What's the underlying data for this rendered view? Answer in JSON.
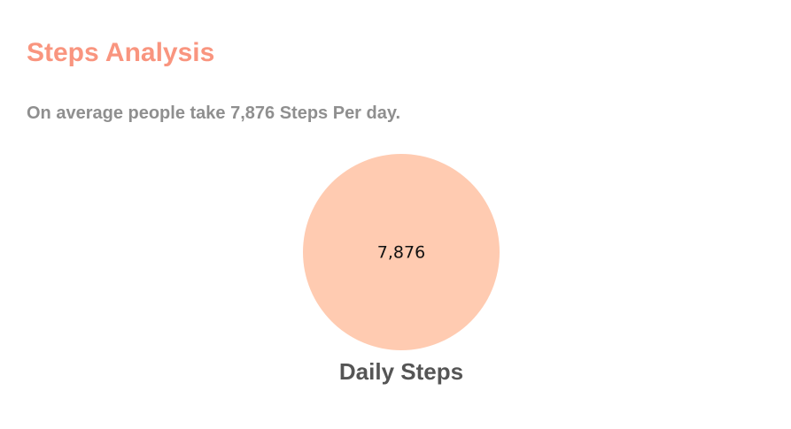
{
  "header": {
    "title": "Steps Analysis",
    "subtitle": "On average people take 7,876 Steps Per day."
  },
  "colors": {
    "title": "#f9957f",
    "subtitle": "#8f8f8f",
    "slice": "#ffcbb1",
    "slice_label": "#111111",
    "category_label": "#555555"
  },
  "chart_data": {
    "type": "pie",
    "title": "",
    "categories": [
      "Daily Steps"
    ],
    "values": [
      7876
    ],
    "value_labels": [
      "7,876"
    ],
    "colors": [
      "#ffcbb1"
    ],
    "legend": "none"
  }
}
